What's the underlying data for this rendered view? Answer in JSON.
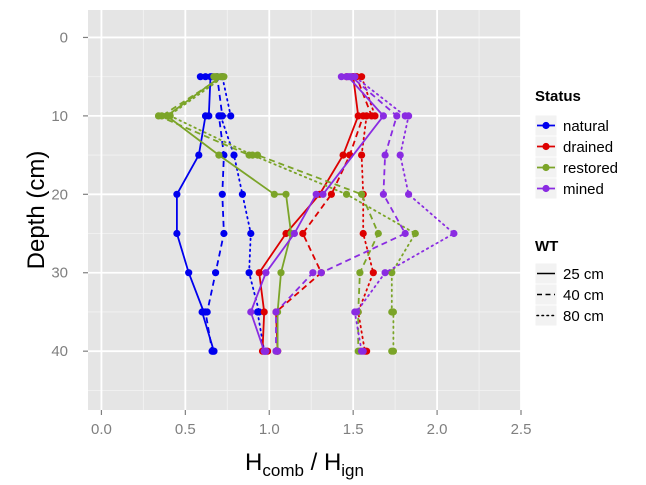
{
  "chart_data": {
    "type": "line",
    "xlabel_main": "H",
    "xlabel_sub1": "comb",
    "xlabel_mid": " / H",
    "xlabel_sub2": "ign",
    "ylabel": "Depth (cm)",
    "xlim": [
      -0.08,
      2.5
    ],
    "ylim": [
      47.5,
      -3.5
    ],
    "y_reversed": true,
    "x_ticks": [
      0.0,
      0.5,
      1.0,
      1.5,
      2.0,
      2.5
    ],
    "x_tick_labels": [
      "0.0",
      "0.5",
      "1.0",
      "1.5",
      "2.0",
      "2.5"
    ],
    "y_ticks": [
      0,
      10,
      20,
      30,
      40
    ],
    "y_tick_labels": [
      "0",
      "10",
      "20",
      "30",
      "40"
    ],
    "grid": true,
    "legend_placement": "right",
    "colors": {
      "natural": "#0000ee",
      "drained": "#dd0000",
      "restored": "#7ba428",
      "mined": "#8a2be2"
    },
    "legend_status": {
      "title": "Status",
      "items": [
        {
          "key": "natural",
          "label": "natural"
        },
        {
          "key": "drained",
          "label": "drained"
        },
        {
          "key": "restored",
          "label": "restored"
        },
        {
          "key": "mined",
          "label": "mined"
        }
      ]
    },
    "legend_wt": {
      "title": "WT",
      "items": [
        {
          "key": "solid",
          "label": "25 cm"
        },
        {
          "key": "dashed",
          "label": "40 cm"
        },
        {
          "key": "dotted",
          "label": "80 cm"
        }
      ]
    },
    "series": [
      {
        "status": "natural",
        "wt": "solid",
        "points": [
          [
            0.59,
            5
          ],
          [
            0.65,
            5
          ],
          [
            0.64,
            10
          ],
          [
            0.62,
            10
          ],
          [
            0.58,
            15
          ],
          [
            0.45,
            20
          ],
          [
            0.45,
            25
          ],
          [
            0.52,
            30
          ],
          [
            0.61,
            35
          ],
          [
            0.6,
            35
          ],
          [
            0.67,
            40
          ],
          [
            0.66,
            40
          ]
        ]
      },
      {
        "status": "natural",
        "wt": "dashed",
        "points": [
          [
            0.62,
            5
          ],
          [
            0.69,
            5
          ],
          [
            0.72,
            10
          ],
          [
            0.7,
            10
          ],
          [
            0.73,
            15
          ],
          [
            0.72,
            20
          ],
          [
            0.73,
            25
          ],
          [
            0.68,
            30
          ],
          [
            0.63,
            35
          ],
          [
            0.62,
            35
          ],
          [
            0.66,
            40
          ],
          [
            0.67,
            40
          ]
        ]
      },
      {
        "status": "natural",
        "wt": "dotted",
        "points": [
          [
            0.66,
            5
          ],
          [
            0.72,
            5
          ],
          [
            0.77,
            10
          ],
          [
            0.71,
            10
          ],
          [
            0.79,
            15
          ],
          [
            0.84,
            20
          ],
          [
            0.89,
            25
          ],
          [
            0.88,
            30
          ],
          [
            0.94,
            35
          ],
          [
            0.93,
            35
          ],
          [
            0.97,
            40
          ],
          [
            0.98,
            40
          ]
        ]
      },
      {
        "status": "drained",
        "wt": "solid",
        "points": [
          [
            1.46,
            5
          ],
          [
            1.5,
            5
          ],
          [
            1.53,
            10
          ],
          [
            1.44,
            15
          ],
          [
            1.3,
            20
          ],
          [
            1.1,
            25
          ],
          [
            0.94,
            30
          ],
          [
            0.97,
            35
          ],
          [
            0.96,
            40
          ],
          [
            0.99,
            40
          ]
        ]
      },
      {
        "status": "drained",
        "wt": "dashed",
        "points": [
          [
            1.5,
            5
          ],
          [
            1.52,
            5
          ],
          [
            1.61,
            10
          ],
          [
            1.56,
            10
          ],
          [
            1.48,
            15
          ],
          [
            1.37,
            20
          ],
          [
            1.2,
            25
          ],
          [
            1.31,
            30
          ],
          [
            1.04,
            35
          ],
          [
            1.05,
            40
          ],
          [
            1.05,
            40
          ]
        ]
      },
      {
        "status": "drained",
        "wt": "dotted",
        "points": [
          [
            1.52,
            5
          ],
          [
            1.55,
            5
          ],
          [
            1.63,
            10
          ],
          [
            1.58,
            10
          ],
          [
            1.55,
            15
          ],
          [
            1.56,
            20
          ],
          [
            1.56,
            25
          ],
          [
            1.62,
            30
          ],
          [
            1.53,
            35
          ],
          [
            1.57,
            40
          ],
          [
            1.58,
            40
          ]
        ]
      },
      {
        "status": "restored",
        "wt": "solid",
        "points": [
          [
            0.67,
            5
          ],
          [
            0.71,
            5
          ],
          [
            0.39,
            10
          ],
          [
            0.7,
            15
          ],
          [
            1.03,
            20
          ],
          [
            1.1,
            20
          ],
          [
            1.13,
            25
          ],
          [
            1.07,
            30
          ],
          [
            1.05,
            35
          ],
          [
            1.05,
            40
          ],
          [
            1.04,
            40
          ]
        ]
      },
      {
        "status": "restored",
        "wt": "dashed",
        "points": [
          [
            0.69,
            5
          ],
          [
            0.72,
            5
          ],
          [
            0.36,
            10
          ],
          [
            0.34,
            10
          ],
          [
            0.88,
            15
          ],
          [
            0.93,
            15
          ],
          [
            1.55,
            20
          ],
          [
            1.65,
            25
          ],
          [
            1.54,
            30
          ],
          [
            1.53,
            35
          ],
          [
            1.53,
            40
          ],
          [
            1.54,
            40
          ]
        ]
      },
      {
        "status": "restored",
        "wt": "dotted",
        "points": [
          [
            0.68,
            5
          ],
          [
            0.73,
            5
          ],
          [
            0.4,
            10
          ],
          [
            0.41,
            10
          ],
          [
            0.9,
            15
          ],
          [
            1.46,
            20
          ],
          [
            1.87,
            25
          ],
          [
            1.73,
            30
          ],
          [
            1.73,
            35
          ],
          [
            1.74,
            35
          ],
          [
            1.74,
            40
          ],
          [
            1.73,
            40
          ]
        ]
      },
      {
        "status": "mined",
        "wt": "solid",
        "points": [
          [
            1.43,
            5
          ],
          [
            1.47,
            5
          ],
          [
            1.68,
            10
          ],
          [
            1.32,
            20
          ],
          [
            1.28,
            20
          ],
          [
            1.15,
            25
          ],
          [
            0.98,
            30
          ],
          [
            0.89,
            35
          ],
          [
            0.97,
            40
          ],
          [
            0.98,
            40
          ]
        ]
      },
      {
        "status": "mined",
        "wt": "dashed",
        "points": [
          [
            1.46,
            5
          ],
          [
            1.49,
            5
          ],
          [
            1.76,
            10
          ],
          [
            1.69,
            15
          ],
          [
            1.68,
            20
          ],
          [
            1.81,
            25
          ],
          [
            1.31,
            30
          ],
          [
            1.26,
            30
          ],
          [
            1.04,
            35
          ],
          [
            1.04,
            40
          ],
          [
            1.05,
            40
          ]
        ]
      },
      {
        "status": "mined",
        "wt": "dotted",
        "points": [
          [
            1.48,
            5
          ],
          [
            1.51,
            5
          ],
          [
            1.81,
            10
          ],
          [
            1.83,
            10
          ],
          [
            1.78,
            15
          ],
          [
            1.83,
            20
          ],
          [
            2.1,
            25
          ],
          [
            1.69,
            30
          ],
          [
            1.52,
            35
          ],
          [
            1.51,
            35
          ],
          [
            1.55,
            40
          ],
          [
            1.56,
            40
          ]
        ]
      }
    ]
  }
}
